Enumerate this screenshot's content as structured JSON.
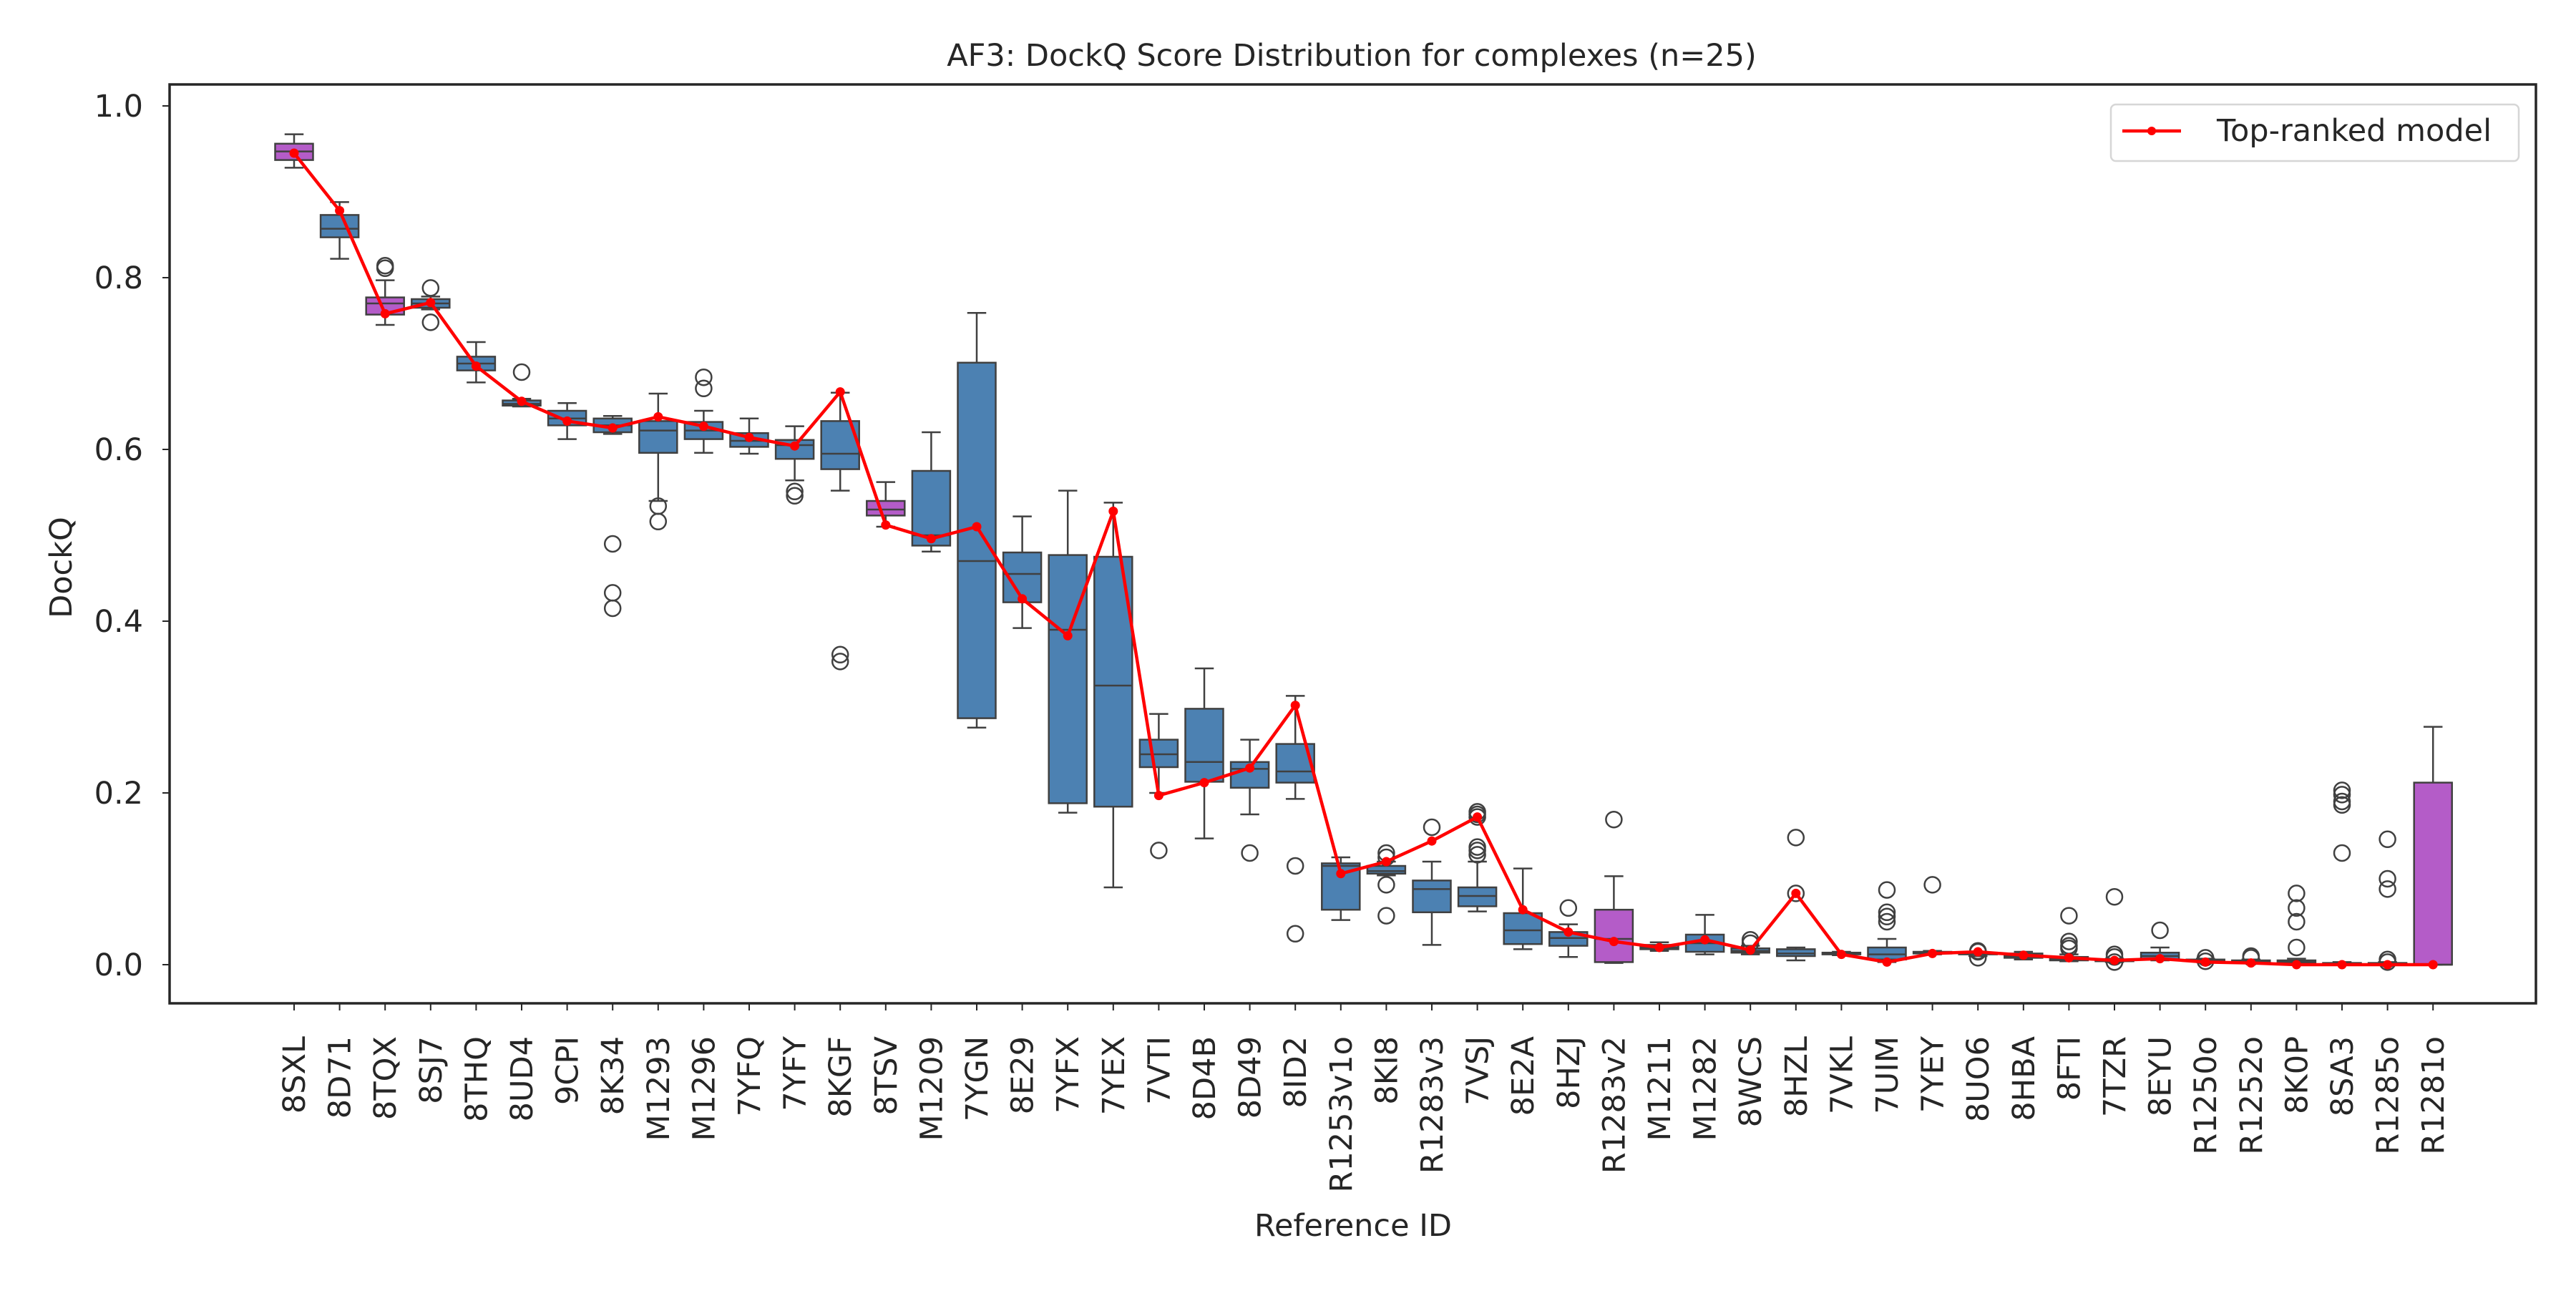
{
  "chart_data": {
    "type": "box",
    "title": "AF3: DockQ Score Distribution for complexes (n=25)",
    "xlabel": "Reference ID",
    "ylabel": "DockQ",
    "ylim": [
      -0.045,
      1.025
    ],
    "yticks": [
      0.0,
      0.2,
      0.4,
      0.6,
      0.8,
      1.0
    ],
    "ytick_labels": [
      "0.0",
      "0.2",
      "0.4",
      "0.6",
      "0.8",
      "1.0"
    ],
    "grid": false,
    "legend": {
      "placement": "top-right",
      "entries": [
        "Top-ranked model"
      ]
    },
    "colors": {
      "box_default": "#4c81b2",
      "box_highlight": "#b45cc8",
      "line": "#ff0000",
      "box_edge": "#404040"
    },
    "categories": [
      "8SXL",
      "8D71",
      "8TQX",
      "8SJ7",
      "8THQ",
      "8UD4",
      "9CPI",
      "8K34",
      "M1293",
      "M1296",
      "7YFQ",
      "7YFY",
      "8KGF",
      "8TSV",
      "M1209",
      "7YGN",
      "8E29",
      "7YFX",
      "7YEX",
      "7VTI",
      "8D4B",
      "8D49",
      "8ID2",
      "R1253v1o",
      "8KI8",
      "R1283v3",
      "7VSJ",
      "8E2A",
      "8HZJ",
      "R1283v2",
      "M1211",
      "M1282",
      "8WCS",
      "8HZL",
      "7VKL",
      "7UIM",
      "7YEY",
      "8UO6",
      "8HBA",
      "8FTI",
      "7TZR",
      "8EYU",
      "R1250o",
      "R1252o",
      "8K0P",
      "8SA3",
      "R1285o",
      "R1281o"
    ],
    "boxes": [
      {
        "whislo": 0.928,
        "q1": 0.937,
        "med": 0.947,
        "q3": 0.956,
        "whishi": 0.967,
        "fliers": [],
        "highlight": true
      },
      {
        "whislo": 0.822,
        "q1": 0.847,
        "med": 0.857,
        "q3": 0.873,
        "whishi": 0.888,
        "fliers": [],
        "highlight": false
      },
      {
        "whislo": 0.745,
        "q1": 0.757,
        "med": 0.77,
        "q3": 0.777,
        "whishi": 0.797,
        "fliers": [
          0.811,
          0.814
        ],
        "highlight": true
      },
      {
        "whislo": 0.763,
        "q1": 0.765,
        "med": 0.77,
        "q3": 0.775,
        "whishi": 0.778,
        "fliers": [
          0.788,
          0.748
        ],
        "highlight": false
      },
      {
        "whislo": 0.678,
        "q1": 0.692,
        "med": 0.7,
        "q3": 0.708,
        "whishi": 0.725,
        "fliers": [],
        "highlight": false
      },
      {
        "whislo": 0.65,
        "q1": 0.651,
        "med": 0.653,
        "q3": 0.657,
        "whishi": 0.659,
        "fliers": [
          0.69
        ],
        "highlight": false
      },
      {
        "whislo": 0.612,
        "q1": 0.628,
        "med": 0.636,
        "q3": 0.645,
        "whishi": 0.654,
        "fliers": [],
        "highlight": false
      },
      {
        "whislo": 0.618,
        "q1": 0.62,
        "med": 0.628,
        "q3": 0.636,
        "whishi": 0.639,
        "fliers": [
          0.49,
          0.433,
          0.415
        ],
        "highlight": false
      },
      {
        "whislo": 0.54,
        "q1": 0.596,
        "med": 0.622,
        "q3": 0.633,
        "whishi": 0.665,
        "fliers": [
          0.534,
          0.516
        ],
        "highlight": false
      },
      {
        "whislo": 0.596,
        "q1": 0.612,
        "med": 0.622,
        "q3": 0.632,
        "whishi": 0.645,
        "fliers": [
          0.684,
          0.671
        ],
        "highlight": false
      },
      {
        "whislo": 0.595,
        "q1": 0.603,
        "med": 0.61,
        "q3": 0.619,
        "whishi": 0.636,
        "fliers": [],
        "highlight": false
      },
      {
        "whislo": 0.564,
        "q1": 0.589,
        "med": 0.605,
        "q3": 0.611,
        "whishi": 0.627,
        "fliers": [
          0.551,
          0.546
        ],
        "highlight": false
      },
      {
        "whislo": 0.552,
        "q1": 0.577,
        "med": 0.595,
        "q3": 0.633,
        "whishi": 0.666,
        "fliers": [
          0.361,
          0.353
        ],
        "highlight": false
      },
      {
        "whislo": 0.51,
        "q1": 0.523,
        "med": 0.53,
        "q3": 0.54,
        "whishi": 0.562,
        "fliers": [],
        "highlight": true
      },
      {
        "whislo": 0.481,
        "q1": 0.488,
        "med": 0.5,
        "q3": 0.575,
        "whishi": 0.62,
        "fliers": [],
        "highlight": false
      },
      {
        "whislo": 0.276,
        "q1": 0.287,
        "med": 0.47,
        "q3": 0.701,
        "whishi": 0.759,
        "fliers": [],
        "highlight": false
      },
      {
        "whislo": 0.392,
        "q1": 0.422,
        "med": 0.455,
        "q3": 0.48,
        "whishi": 0.522,
        "fliers": [],
        "highlight": false
      },
      {
        "whislo": 0.177,
        "q1": 0.188,
        "med": 0.39,
        "q3": 0.477,
        "whishi": 0.552,
        "fliers": [],
        "highlight": false
      },
      {
        "whislo": 0.09,
        "q1": 0.184,
        "med": 0.325,
        "q3": 0.475,
        "whishi": 0.538,
        "fliers": [],
        "highlight": false
      },
      {
        "whislo": 0.2,
        "q1": 0.23,
        "med": 0.245,
        "q3": 0.262,
        "whishi": 0.292,
        "fliers": [
          0.133
        ],
        "highlight": false
      },
      {
        "whislo": 0.147,
        "q1": 0.213,
        "med": 0.236,
        "q3": 0.298,
        "whishi": 0.345,
        "fliers": [],
        "highlight": false
      },
      {
        "whislo": 0.175,
        "q1": 0.206,
        "med": 0.228,
        "q3": 0.236,
        "whishi": 0.262,
        "fliers": [
          0.13
        ],
        "highlight": false
      },
      {
        "whislo": 0.193,
        "q1": 0.212,
        "med": 0.225,
        "q3": 0.257,
        "whishi": 0.313,
        "fliers": [
          0.115,
          0.036
        ],
        "highlight": false
      },
      {
        "whislo": 0.052,
        "q1": 0.064,
        "med": 0.115,
        "q3": 0.118,
        "whishi": 0.125,
        "fliers": [],
        "highlight": false
      },
      {
        "whislo": 0.104,
        "q1": 0.106,
        "med": 0.109,
        "q3": 0.115,
        "whishi": 0.12,
        "fliers": [
          0.13,
          0.125,
          0.093,
          0.057
        ],
        "highlight": false
      },
      {
        "whislo": 0.023,
        "q1": 0.061,
        "med": 0.088,
        "q3": 0.098,
        "whishi": 0.12,
        "fliers": [
          0.16
        ],
        "highlight": false
      },
      {
        "whislo": 0.062,
        "q1": 0.068,
        "med": 0.08,
        "q3": 0.09,
        "whishi": 0.12,
        "fliers": [
          0.178,
          0.175,
          0.172,
          0.137,
          0.133,
          0.128
        ],
        "highlight": false
      },
      {
        "whislo": 0.018,
        "q1": 0.024,
        "med": 0.04,
        "q3": 0.06,
        "whishi": 0.112,
        "fliers": [],
        "highlight": false
      },
      {
        "whislo": 0.009,
        "q1": 0.022,
        "med": 0.031,
        "q3": 0.038,
        "whishi": 0.047,
        "fliers": [
          0.066
        ],
        "highlight": false
      },
      {
        "whislo": 0.002,
        "q1": 0.003,
        "med": 0.03,
        "q3": 0.064,
        "whishi": 0.103,
        "fliers": [
          0.169
        ],
        "highlight": true
      },
      {
        "whislo": 0.016,
        "q1": 0.018,
        "med": 0.02,
        "q3": 0.023,
        "whishi": 0.026,
        "fliers": [],
        "highlight": false
      },
      {
        "whislo": 0.012,
        "q1": 0.015,
        "med": 0.025,
        "q3": 0.035,
        "whishi": 0.058,
        "fliers": [],
        "highlight": false
      },
      {
        "whislo": 0.012,
        "q1": 0.014,
        "med": 0.016,
        "q3": 0.019,
        "whishi": 0.022,
        "fliers": [
          0.029,
          0.025
        ],
        "highlight": false
      },
      {
        "whislo": 0.005,
        "q1": 0.01,
        "med": 0.013,
        "q3": 0.018,
        "whishi": 0.02,
        "fliers": [
          0.148,
          0.083
        ],
        "highlight": false
      },
      {
        "whislo": 0.011,
        "q1": 0.012,
        "med": 0.013,
        "q3": 0.014,
        "whishi": 0.015,
        "fliers": [],
        "highlight": false
      },
      {
        "whislo": 0.003,
        "q1": 0.006,
        "med": 0.012,
        "q3": 0.02,
        "whishi": 0.03,
        "fliers": [
          0.087,
          0.061,
          0.056,
          0.05
        ],
        "highlight": false
      },
      {
        "whislo": 0.012,
        "q1": 0.013,
        "med": 0.014,
        "q3": 0.015,
        "whishi": 0.016,
        "fliers": [
          0.093
        ],
        "highlight": false
      },
      {
        "whislo": 0.01,
        "q1": 0.012,
        "med": 0.013,
        "q3": 0.014,
        "whishi": 0.015,
        "fliers": [
          0.016,
          0.015,
          0.008
        ],
        "highlight": false
      },
      {
        "whislo": 0.006,
        "q1": 0.008,
        "med": 0.01,
        "q3": 0.013,
        "whishi": 0.015,
        "fliers": [],
        "highlight": false
      },
      {
        "whislo": 0.004,
        "q1": 0.005,
        "med": 0.007,
        "q3": 0.009,
        "whishi": 0.012,
        "fliers": [
          0.057,
          0.027,
          0.022,
          0.019
        ],
        "highlight": false
      },
      {
        "whislo": 0.003,
        "q1": 0.004,
        "med": 0.005,
        "q3": 0.006,
        "whishi": 0.007,
        "fliers": [
          0.079,
          0.012,
          0.009,
          0.003
        ],
        "highlight": false
      },
      {
        "whislo": 0.005,
        "q1": 0.006,
        "med": 0.01,
        "q3": 0.014,
        "whishi": 0.02,
        "fliers": [
          0.04
        ],
        "highlight": false
      },
      {
        "whislo": 0.003,
        "q1": 0.004,
        "med": 0.005,
        "q3": 0.006,
        "whishi": 0.007,
        "fliers": [
          0.008,
          0.004
        ],
        "highlight": false
      },
      {
        "whislo": 0.002,
        "q1": 0.003,
        "med": 0.004,
        "q3": 0.005,
        "whishi": 0.006,
        "fliers": [
          0.01,
          0.008
        ],
        "highlight": false
      },
      {
        "whislo": 0.001,
        "q1": 0.002,
        "med": 0.003,
        "q3": 0.005,
        "whishi": 0.007,
        "fliers": [
          0.083,
          0.066,
          0.05,
          0.02
        ],
        "highlight": false
      },
      {
        "whislo": 0.0,
        "q1": 0.001,
        "med": 0.001,
        "q3": 0.002,
        "whishi": 0.003,
        "fliers": [
          0.203,
          0.198,
          0.19,
          0.186,
          0.13
        ],
        "highlight": false
      },
      {
        "whislo": 0.0,
        "q1": 0.0,
        "med": 0.001,
        "q3": 0.002,
        "whishi": 0.003,
        "fliers": [
          0.146,
          0.1,
          0.088,
          0.006,
          0.003
        ],
        "highlight": false
      },
      {
        "whislo": 0.0,
        "q1": 0.0,
        "med": 0.0,
        "q3": 0.212,
        "whishi": 0.277,
        "fliers": [],
        "highlight": true
      }
    ],
    "series": [
      {
        "name": "Top-ranked model",
        "type": "line",
        "values": [
          0.945,
          0.878,
          0.758,
          0.771,
          0.697,
          0.656,
          0.633,
          0.625,
          0.638,
          0.627,
          0.614,
          0.604,
          0.667,
          0.512,
          0.496,
          0.51,
          0.426,
          0.383,
          0.528,
          0.197,
          0.212,
          0.229,
          0.302,
          0.106,
          0.12,
          0.144,
          0.172,
          0.064,
          0.038,
          0.027,
          0.02,
          0.029,
          0.017,
          0.083,
          0.012,
          0.003,
          0.013,
          0.015,
          0.011,
          0.008,
          0.005,
          0.007,
          0.003,
          0.002,
          0.0,
          0.0,
          0.0,
          0.0
        ]
      }
    ]
  }
}
